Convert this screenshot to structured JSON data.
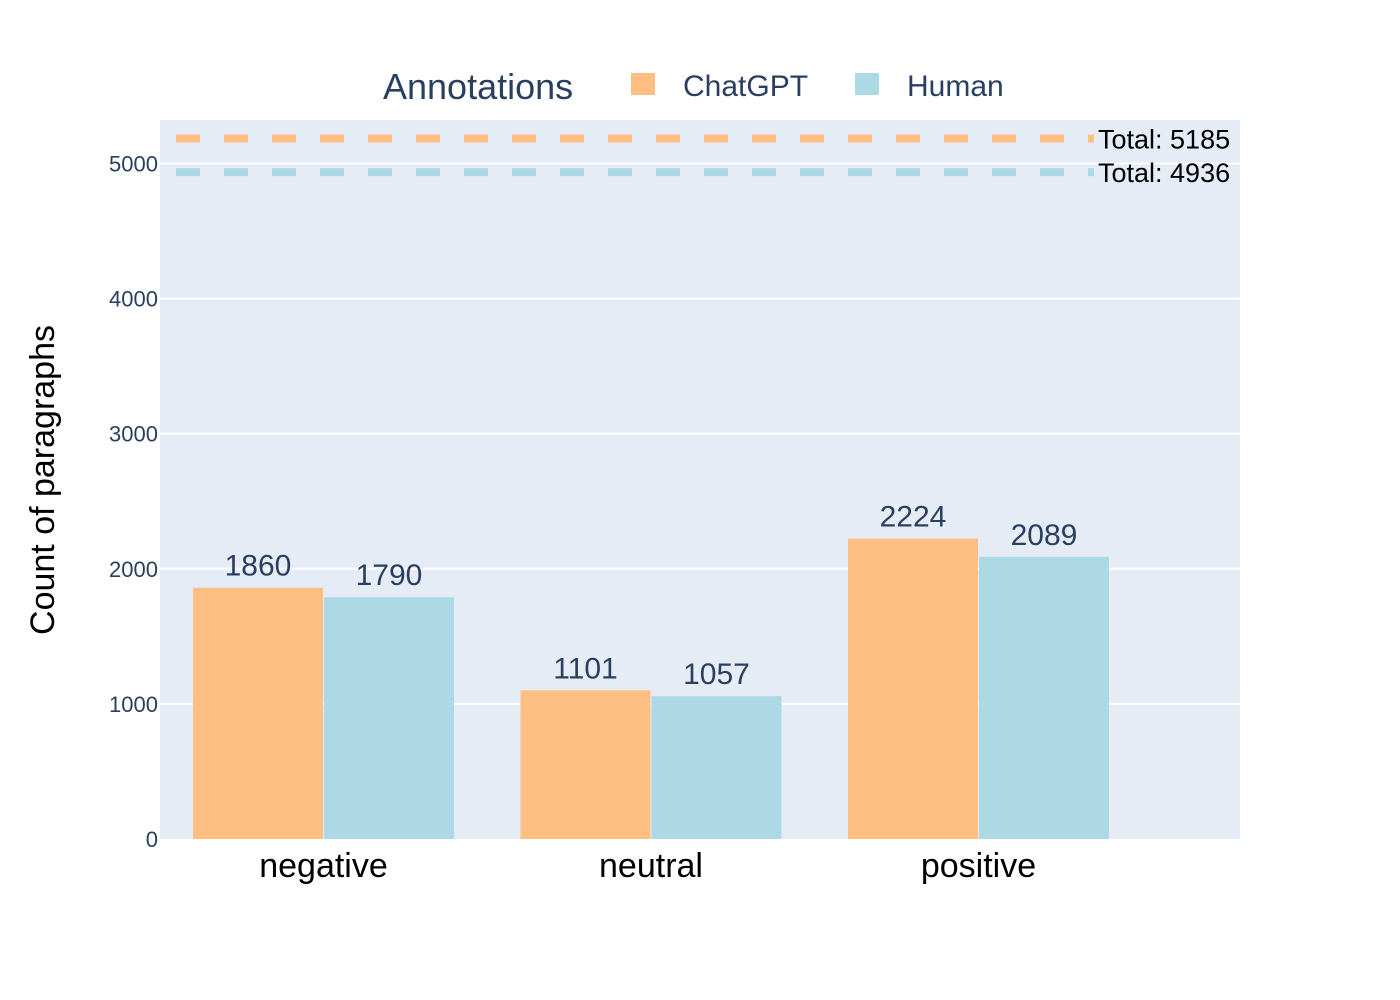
{
  "chart_data": {
    "type": "bar",
    "title": "",
    "xlabel": "",
    "ylabel": "Count of paragraphs",
    "categories": [
      "negative",
      "neutral",
      "positive"
    ],
    "series": [
      {
        "name": "ChatGPT",
        "values": [
          1860,
          1101,
          2224
        ],
        "color": "#fdbf82"
      },
      {
        "name": "Human",
        "values": [
          1790,
          1057,
          2089
        ],
        "color": "#add8e6"
      }
    ],
    "ylim": [
      0,
      5300
    ],
    "yticks": [
      0,
      1000,
      2000,
      3000,
      4000,
      5000
    ],
    "grid": true,
    "legend": {
      "title": "Annotations",
      "placement": "top-center"
    },
    "reference_lines": [
      {
        "value": 5185,
        "label": "Total: 5185",
        "color": "#fdbf82",
        "style": "dashed"
      },
      {
        "value": 4936,
        "label": "Total: 4936",
        "color": "#add8e6",
        "style": "dashed"
      }
    ],
    "plot_background": "#e5ecf6"
  }
}
